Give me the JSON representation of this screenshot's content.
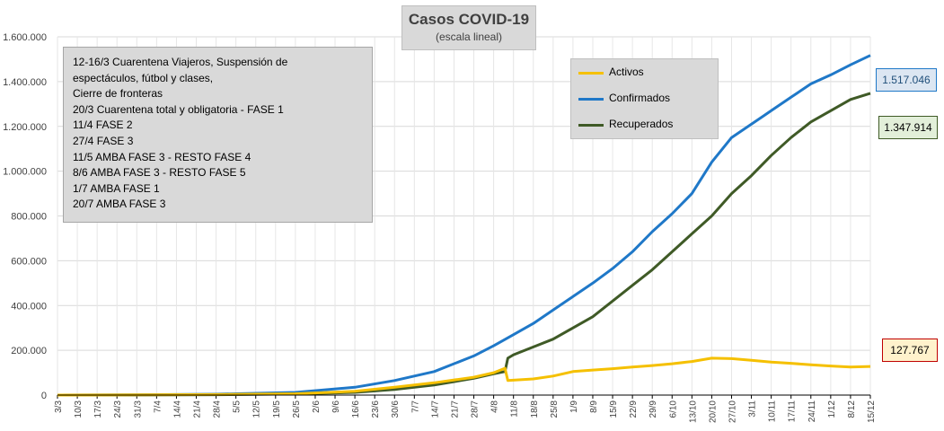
{
  "chart_data": {
    "type": "line",
    "title": "Casos COVID-19",
    "subtitle": "(escala lineal)",
    "ylim": [
      0,
      1600000
    ],
    "y_ticks": [
      "0",
      "200.000",
      "400.000",
      "600.000",
      "800.000",
      "1.000.000",
      "1.200.000",
      "1.400.000",
      "1.600.000"
    ],
    "x_start": "3/3",
    "x_end": "15/12",
    "x_tick_labels": [
      "3/3",
      "10/3",
      "17/3",
      "24/3",
      "31/3",
      "7/4",
      "14/4",
      "21/4",
      "28/4",
      "5/5",
      "12/5",
      "19/5",
      "26/5",
      "2/6",
      "9/6",
      "16/6",
      "23/6",
      "30/6",
      "7/7",
      "14/7",
      "21/7",
      "28/7",
      "4/8",
      "11/8",
      "18/8",
      "25/8",
      "1/9",
      "8/9",
      "15/9",
      "22/9",
      "29/9",
      "6/10",
      "13/10",
      "20/10",
      "27/10",
      "3/11",
      "10/11",
      "17/11",
      "24/11",
      "1/12",
      "8/12",
      "15/12"
    ],
    "grid": true,
    "legend_position": "top-right",
    "colors": {
      "activos": "#f5c000",
      "confirmados": "#1f78c8",
      "recuperados": "#3f5a26"
    },
    "series": [
      {
        "name": "Activos",
        "key": "activos",
        "x": [
          "3/3",
          "31/3",
          "28/4",
          "26/5",
          "16/6",
          "30/6",
          "14/7",
          "28/7",
          "4/8",
          "8/8",
          "9/8",
          "18/8",
          "25/8",
          "1/9",
          "8/9",
          "15/9",
          "22/9",
          "29/9",
          "6/10",
          "13/10",
          "20/10",
          "27/10",
          "3/11",
          "10/11",
          "17/11",
          "24/11",
          "1/12",
          "8/12",
          "15/12"
        ],
        "values": [
          0,
          1000,
          2500,
          6000,
          17000,
          35000,
          55000,
          80000,
          100000,
          120000,
          65000,
          72000,
          85000,
          105000,
          112000,
          118000,
          125000,
          132000,
          140000,
          150000,
          165000,
          163000,
          155000,
          147000,
          142000,
          135000,
          130000,
          125000,
          127767
        ]
      },
      {
        "name": "Confirmados",
        "key": "confirmados",
        "x": [
          "3/3",
          "31/3",
          "28/4",
          "26/5",
          "16/6",
          "30/6",
          "14/7",
          "28/7",
          "4/8",
          "11/8",
          "18/8",
          "25/8",
          "1/9",
          "8/9",
          "15/9",
          "22/9",
          "29/9",
          "6/10",
          "13/10",
          "20/10",
          "27/10",
          "3/11",
          "10/11",
          "17/11",
          "24/11",
          "1/12",
          "8/12",
          "15/12"
        ],
        "values": [
          0,
          1000,
          4000,
          12000,
          35000,
          65000,
          105000,
          175000,
          220000,
          270000,
          320000,
          380000,
          440000,
          500000,
          565000,
          640000,
          730000,
          810000,
          900000,
          1040000,
          1150000,
          1210000,
          1270000,
          1330000,
          1390000,
          1430000,
          1475000,
          1517046
        ]
      },
      {
        "name": "Recuperados",
        "key": "recuperados",
        "x": [
          "3/3",
          "31/3",
          "28/4",
          "26/5",
          "16/6",
          "30/6",
          "14/7",
          "28/7",
          "4/8",
          "8/8",
          "9/8",
          "11/8",
          "18/8",
          "25/8",
          "1/9",
          "8/9",
          "15/9",
          "22/9",
          "29/9",
          "6/10",
          "13/10",
          "20/10",
          "27/10",
          "3/11",
          "10/11",
          "17/11",
          "24/11",
          "1/12",
          "8/12",
          "15/12"
        ],
        "values": [
          0,
          500,
          1500,
          5000,
          12000,
          25000,
          45000,
          75000,
          95000,
          105000,
          165000,
          180000,
          215000,
          250000,
          300000,
          350000,
          420000,
          490000,
          560000,
          640000,
          720000,
          800000,
          900000,
          980000,
          1070000,
          1150000,
          1220000,
          1270000,
          1320000,
          1347914
        ]
      }
    ],
    "notes": [
      "12-16/3  Cuarentena Viajeros, Suspensión de",
      "              espectáculos, fútbol y clases,",
      "              Cierre de fronteras",
      "20/3  Cuarentena total y obligatoria - FASE 1",
      "11/4 FASE 2",
      "27/4 FASE 3",
      "11/5 AMBA FASE 3 - RESTO FASE 4",
      "8/6 AMBA FASE 3 - RESTO FASE 5",
      "1/7 AMBA FASE 1",
      "20/7 AMBA FASE 3"
    ],
    "end_labels": {
      "confirmados": "1.517.046",
      "recuperados": "1.347.914",
      "activos": "127.767"
    }
  }
}
